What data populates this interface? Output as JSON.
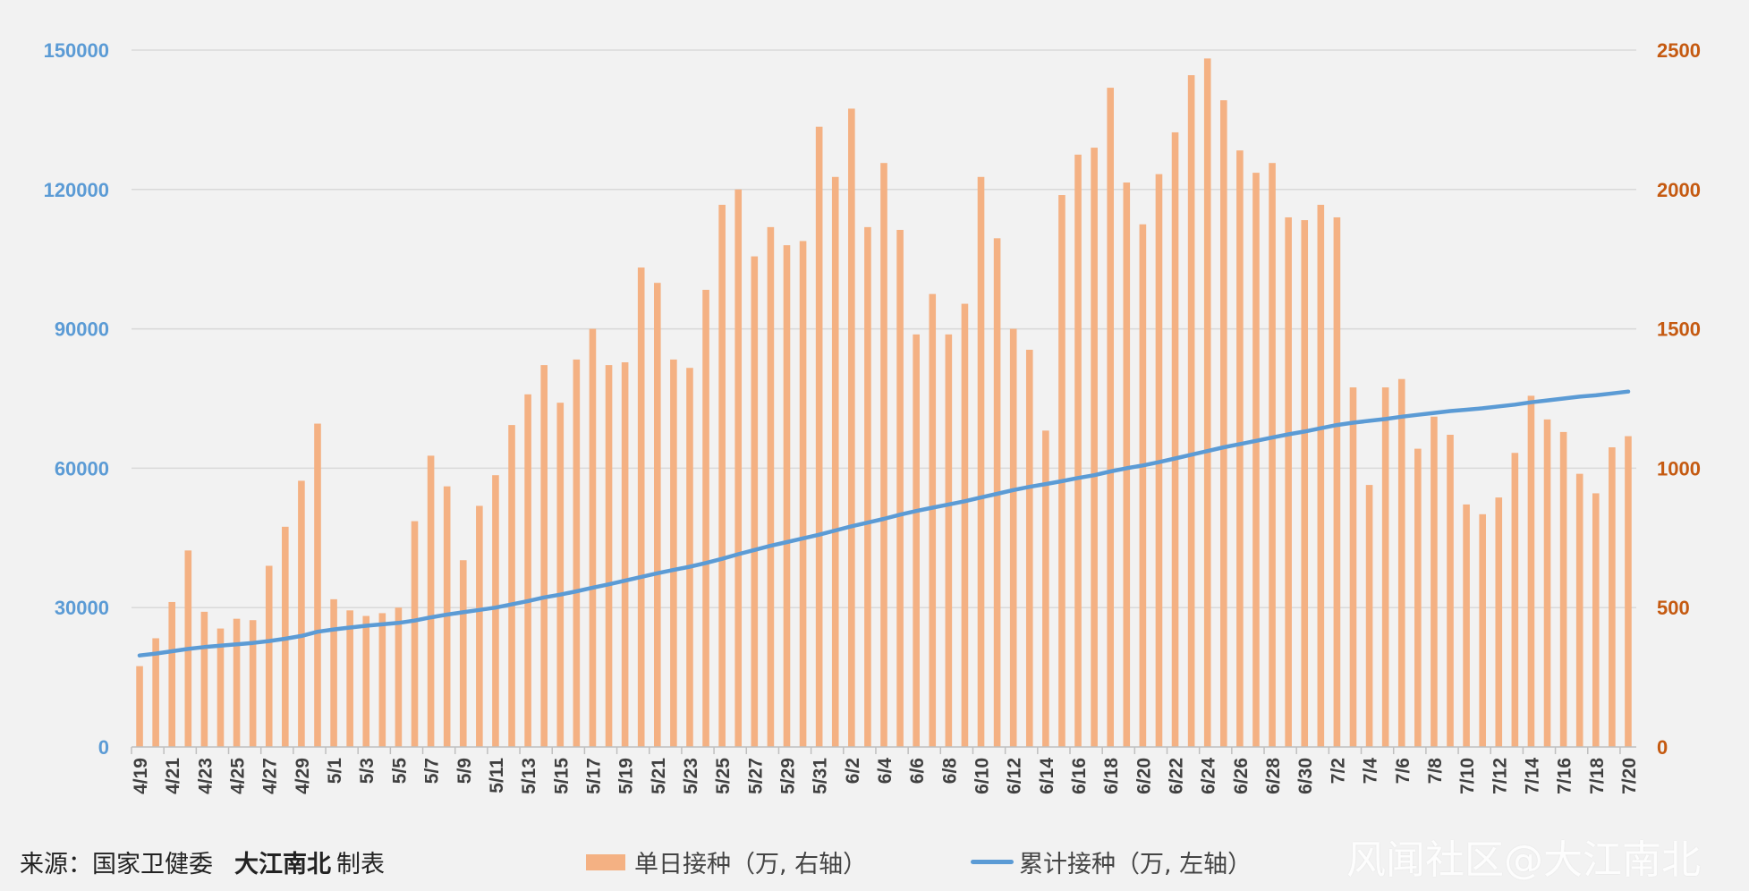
{
  "chart_data": {
    "type": "bar+line",
    "x": [
      "4/19",
      "4/20",
      "4/21",
      "4/22",
      "4/23",
      "4/24",
      "4/25",
      "4/26",
      "4/27",
      "4/28",
      "4/29",
      "4/30",
      "5/1",
      "5/2",
      "5/3",
      "5/4",
      "5/5",
      "5/6",
      "5/7",
      "5/8",
      "5/9",
      "5/10",
      "5/11",
      "5/12",
      "5/13",
      "5/14",
      "5/15",
      "5/16",
      "5/17",
      "5/18",
      "5/19",
      "5/20",
      "5/21",
      "5/22",
      "5/23",
      "5/24",
      "5/25",
      "5/26",
      "5/27",
      "5/28",
      "5/29",
      "5/30",
      "5/31",
      "6/1",
      "6/2",
      "6/3",
      "6/4",
      "6/5",
      "6/6",
      "6/7",
      "6/8",
      "6/9",
      "6/10",
      "6/11",
      "6/12",
      "6/13",
      "6/14",
      "6/15",
      "6/16",
      "6/17",
      "6/18",
      "6/19",
      "6/20",
      "6/21",
      "6/22",
      "6/23",
      "6/24",
      "6/25",
      "6/26",
      "6/27",
      "6/28",
      "6/29",
      "6/30",
      "7/1",
      "7/2",
      "7/3",
      "7/4",
      "7/5",
      "7/6",
      "7/7",
      "7/8",
      "7/9",
      "7/10",
      "7/11",
      "7/12",
      "7/13",
      "7/14",
      "7/15",
      "7/16",
      "7/17",
      "7/18",
      "7/19",
      "7/20"
    ],
    "series": [
      {
        "name": "单日接种（万, 右轴）",
        "type": "bar",
        "axis": "right",
        "color": "#f4b183",
        "values": [
          290,
          390,
          520,
          705,
          485,
          425,
          460,
          455,
          650,
          790,
          955,
          1160,
          530,
          490,
          470,
          480,
          500,
          810,
          1045,
          935,
          670,
          865,
          975,
          1155,
          1265,
          1370,
          1235,
          1390,
          1500,
          1370,
          1380,
          1720,
          1665,
          1390,
          1360,
          1640,
          1945,
          2000,
          1760,
          1865,
          1800,
          1815,
          2225,
          2045,
          2290,
          1865,
          2095,
          1855,
          1480,
          1625,
          1480,
          1590,
          2045,
          1825,
          1500,
          1425,
          1135,
          1980,
          2125,
          2150,
          2365,
          2025,
          1875,
          2055,
          2205,
          2410,
          2470,
          2320,
          2140,
          2060,
          2095,
          1900,
          1890,
          1945,
          1900,
          1290,
          940,
          1290,
          1320,
          1070,
          1185,
          1120,
          870,
          835,
          895,
          1055,
          1260,
          1175,
          1130,
          980,
          910,
          1075,
          1115
        ]
      },
      {
        "name": "累计接种（万, 左轴）",
        "type": "line",
        "axis": "left",
        "color": "#5b9bd5",
        "values": [
          19700,
          20100,
          20600,
          21100,
          21500,
          21800,
          22100,
          22400,
          22800,
          23300,
          23900,
          24800,
          25300,
          25700,
          26100,
          26400,
          26700,
          27200,
          27900,
          28500,
          29000,
          29500,
          30000,
          30700,
          31400,
          32200,
          32800,
          33500,
          34300,
          35000,
          35800,
          36600,
          37400,
          38100,
          38800,
          39600,
          40500,
          41500,
          42400,
          43300,
          44100,
          44900,
          45700,
          46600,
          47500,
          48300,
          49100,
          50000,
          50800,
          51500,
          52200,
          52900,
          53700,
          54500,
          55300,
          56000,
          56600,
          57200,
          57900,
          58500,
          59300,
          60000,
          60600,
          61300,
          62100,
          62900,
          63700,
          64500,
          65200,
          65900,
          66600,
          67300,
          67900,
          68600,
          69300,
          69800,
          70200,
          70600,
          71100,
          71500,
          71900,
          72300,
          72600,
          72900,
          73300,
          73700,
          74200,
          74600,
          75000,
          75400,
          75700,
          76100,
          76500
        ]
      }
    ],
    "yleft": {
      "ticks": [
        "0",
        "30000",
        "60000",
        "90000",
        "120000",
        "150000"
      ],
      "range": [
        0,
        150000
      ],
      "color": "#5b9bd5"
    },
    "yright": {
      "ticks": [
        "0",
        "500",
        "1000",
        "1500",
        "2000",
        "2500"
      ],
      "range": [
        0,
        2500
      ],
      "color": "#c55a11"
    },
    "x_tick_labels": [
      "4/19",
      "4/21",
      "4/23",
      "4/25",
      "4/27",
      "4/29",
      "5/1",
      "5/3",
      "5/5",
      "5/7",
      "5/9",
      "5/11",
      "5/13",
      "5/15",
      "5/17",
      "5/19",
      "5/21",
      "5/23",
      "5/25",
      "5/27",
      "5/29",
      "5/31",
      "6/2",
      "6/4",
      "6/6",
      "6/8",
      "6/10",
      "6/12",
      "6/14",
      "6/16",
      "6/18",
      "6/20",
      "6/22",
      "6/24",
      "6/26",
      "6/28",
      "6/30",
      "7/2",
      "7/4",
      "7/6",
      "7/8",
      "7/10",
      "7/12",
      "7/14",
      "7/16",
      "7/18",
      "7/20"
    ],
    "grid": true,
    "legend_position": "bottom"
  },
  "footer": {
    "source_label": "来源：国家卫健委",
    "maker": "大江南北",
    "made_by": "制表"
  },
  "legend": {
    "bar_label": "单日接种（万, 右轴）",
    "line_label": "累计接种（万, 左轴）"
  },
  "watermark": "风闻社区@大江南北"
}
